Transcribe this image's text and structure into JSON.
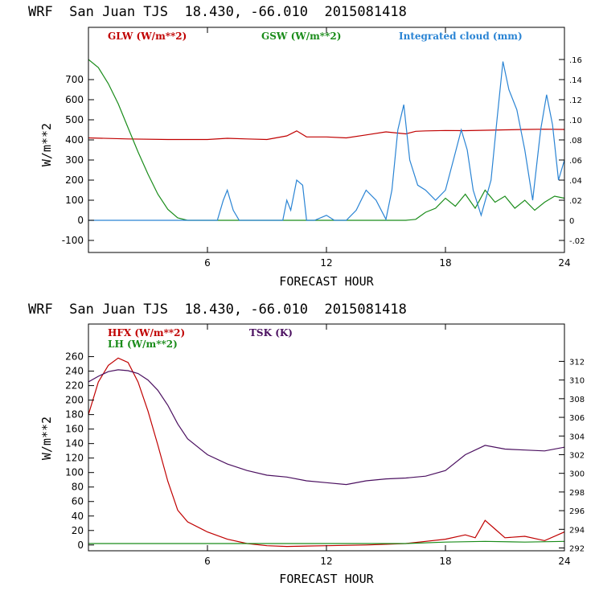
{
  "chart_data": [
    {
      "type": "line",
      "title": "WRF  San Juan TJS  18.430, -66.010  2015081418",
      "xlabel": "FORECAST HOUR",
      "ylabel": "W/m**2",
      "xlim": [
        0,
        24
      ],
      "ylim": [
        -160,
        960
      ],
      "xticks": [
        "6",
        "12",
        "18",
        "24"
      ],
      "xtick_values": [
        6,
        12,
        18,
        24
      ],
      "yticks": [
        "-100",
        "0",
        "100",
        "200",
        "300",
        "400",
        "500",
        "600",
        "700"
      ],
      "ytick_values": [
        -100,
        0,
        100,
        200,
        300,
        400,
        500,
        600,
        700
      ],
      "y2lim": [
        -0.032,
        0.192
      ],
      "y2ticks": [
        "-.02",
        "0",
        ".02",
        ".04",
        ".06",
        ".08",
        ".10",
        ".12",
        ".14",
        ".16"
      ],
      "y2tick_values": [
        -0.02,
        0,
        0.02,
        0.04,
        0.06,
        0.08,
        0.1,
        0.12,
        0.14,
        0.16
      ],
      "series": [
        {
          "name": "GLW (W/m**2)",
          "color": "#c00000",
          "axis": "left",
          "x": [
            0,
            2,
            4,
            6,
            7,
            8,
            9,
            10,
            10.5,
            11,
            12,
            13,
            14,
            15,
            16,
            16.5,
            17,
            18,
            19,
            20,
            21,
            22,
            23,
            24
          ],
          "y": [
            410,
            405,
            402,
            402,
            408,
            405,
            402,
            420,
            445,
            415,
            415,
            410,
            425,
            440,
            430,
            443,
            445,
            447,
            446,
            448,
            450,
            452,
            453,
            452
          ]
        },
        {
          "name": "GSW (W/m**2)",
          "color": "#1a8c1a",
          "axis": "left",
          "x": [
            0,
            0.5,
            1,
            1.5,
            2,
            2.5,
            3,
            3.5,
            4,
            4.5,
            5,
            6,
            8,
            10,
            12,
            14,
            16,
            16.5,
            17,
            17.5,
            18,
            18.5,
            19,
            19.5,
            20,
            20.5,
            21,
            21.5,
            22,
            22.5,
            23,
            23.5,
            24
          ],
          "y": [
            800,
            760,
            680,
            580,
            460,
            340,
            230,
            130,
            55,
            12,
            0,
            0,
            0,
            0,
            0,
            0,
            0,
            5,
            40,
            60,
            110,
            70,
            130,
            60,
            150,
            90,
            120,
            60,
            100,
            50,
            90,
            120,
            110
          ]
        },
        {
          "name": "Integrated cloud (mm)",
          "color": "#2a84d4",
          "axis": "right",
          "x": [
            0,
            6.5,
            6.8,
            7.0,
            7.3,
            7.6,
            9.8,
            10.0,
            10.2,
            10.5,
            10.8,
            11.0,
            11.4,
            12.0,
            12.4,
            13.0,
            13.5,
            14.0,
            14.5,
            15.0,
            15.3,
            15.6,
            15.9,
            16.2,
            16.6,
            17.0,
            17.5,
            18.0,
            18.4,
            18.8,
            19.1,
            19.4,
            19.8,
            20.3,
            20.6,
            20.9,
            21.2,
            21.6,
            22.0,
            22.4,
            22.8,
            23.1,
            23.4,
            23.7,
            24.0
          ],
          "y": [
            0,
            0,
            0.02,
            0.03,
            0.01,
            0,
            0,
            0.02,
            0.01,
            0.04,
            0.035,
            0,
            0,
            0.005,
            0,
            0,
            0.01,
            0.03,
            0.02,
            0.001,
            0.03,
            0.09,
            0.115,
            0.06,
            0.035,
            0.03,
            0.02,
            0.03,
            0.06,
            0.09,
            0.07,
            0.03,
            0.005,
            0.04,
            0.1,
            0.158,
            0.13,
            0.11,
            0.07,
            0.02,
            0.09,
            0.125,
            0.095,
            0.04,
            0.06
          ]
        }
      ],
      "legend": [
        "GLW (W/m**2)",
        "GSW (W/m**2)",
        "Integrated cloud (mm)"
      ]
    },
    {
      "type": "line",
      "title": "WRF  San Juan TJS  18.430, -66.010  2015081418",
      "xlabel": "FORECAST HOUR",
      "ylabel": "W/m**2",
      "xlim": [
        0,
        24
      ],
      "ylim": [
        -8,
        305
      ],
      "xticks": [
        "6",
        "12",
        "18",
        "24"
      ],
      "xtick_values": [
        6,
        12,
        18,
        24
      ],
      "yticks": [
        "0",
        "20",
        "40",
        "60",
        "80",
        "100",
        "120",
        "140",
        "160",
        "180",
        "200",
        "220",
        "240",
        "260"
      ],
      "ytick_values": [
        0,
        20,
        40,
        60,
        80,
        100,
        120,
        140,
        160,
        180,
        200,
        220,
        240,
        260
      ],
      "y2lim": [
        291.7,
        316.0
      ],
      "y2ticks": [
        "292",
        "294",
        "296",
        "298",
        "300",
        "302",
        "304",
        "306",
        "308",
        "310",
        "312"
      ],
      "y2tick_values": [
        292,
        294,
        296,
        298,
        300,
        302,
        304,
        306,
        308,
        310,
        312
      ],
      "series": [
        {
          "name": "HFX (W/m**2)",
          "color": "#c00000",
          "axis": "left",
          "x": [
            0,
            0.5,
            1,
            1.5,
            2,
            2.5,
            3,
            3.5,
            4,
            4.5,
            5,
            6,
            7,
            8,
            9,
            10,
            12,
            14,
            16,
            17,
            18,
            19,
            19.5,
            20,
            20.5,
            21,
            22,
            23,
            24
          ],
          "y": [
            180,
            225,
            248,
            258,
            252,
            225,
            185,
            138,
            88,
            48,
            32,
            18,
            8,
            2,
            -1,
            -2,
            -1,
            0,
            2,
            5,
            8,
            14,
            10,
            34,
            22,
            10,
            12,
            6,
            18
          ]
        },
        {
          "name": "LH (W/m**2)",
          "color": "#1a8c1a",
          "axis": "left",
          "x": [
            0,
            4,
            8,
            12,
            16,
            18,
            20,
            22,
            24
          ],
          "y": [
            2,
            2,
            2,
            2,
            2,
            4,
            5,
            4,
            5
          ]
        },
        {
          "name": "TSK (K)",
          "color": "#4b1060",
          "axis": "right",
          "x": [
            0,
            0.5,
            1,
            1.5,
            2,
            2.5,
            3,
            3.5,
            4,
            4.5,
            5,
            6,
            7,
            8,
            9,
            10,
            11,
            12,
            13,
            14,
            15,
            16,
            17,
            18,
            19,
            20,
            21,
            22,
            23,
            24
          ],
          "y": [
            309.8,
            310.4,
            310.9,
            311.1,
            311.0,
            310.7,
            310.0,
            308.9,
            307.3,
            305.3,
            303.7,
            302.0,
            301.0,
            300.3,
            299.8,
            299.6,
            299.2,
            299.0,
            298.8,
            299.2,
            299.4,
            299.5,
            299.7,
            300.3,
            302.0,
            303.0,
            302.6,
            302.5,
            302.4,
            302.8
          ]
        }
      ],
      "legend": [
        "HFX (W/m**2)",
        "LH (W/m**2)",
        "TSK (K)"
      ]
    }
  ]
}
